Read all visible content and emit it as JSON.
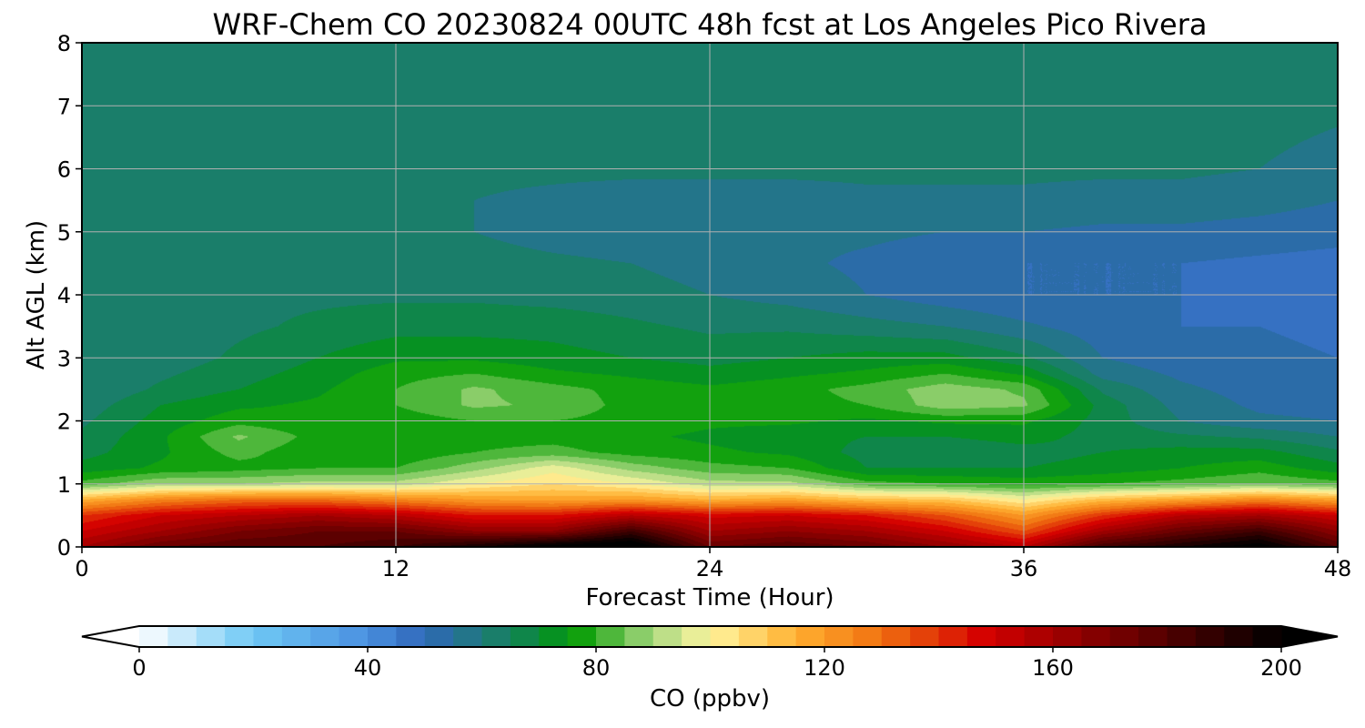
{
  "chart_data": {
    "type": "heatmap",
    "title": "WRF-Chem CO  20230824 00UTC 48h fcst at Los Angeles Pico Rivera",
    "xlabel": "Forecast Time (Hour)",
    "ylabel": "Alt AGL (km)",
    "xlim": [
      0,
      48
    ],
    "ylim": [
      0,
      8
    ],
    "xticks": [
      0,
      12,
      24,
      36,
      48
    ],
    "yticks": [
      0,
      1,
      2,
      3,
      4,
      5,
      6,
      7,
      8
    ],
    "grid": true,
    "colorbar": {
      "label": "CO  (ppbv)",
      "min": 0,
      "max": 200,
      "step": 5,
      "ticks": [
        0,
        40,
        80,
        120,
        160,
        200
      ],
      "extend": "both",
      "orientation": "horizontal"
    },
    "colorscale": [
      {
        "v": 0,
        "c": "#ffffff"
      },
      {
        "v": 20,
        "c": "#6ec8f5"
      },
      {
        "v": 40,
        "c": "#4a90e0"
      },
      {
        "v": 50,
        "c": "#2f67b8"
      },
      {
        "v": 60,
        "c": "#1f7a7a"
      },
      {
        "v": 70,
        "c": "#0a8a3a"
      },
      {
        "v": 76,
        "c": "#009a00"
      },
      {
        "v": 90,
        "c": "#a8d880"
      },
      {
        "v": 100,
        "c": "#fff5a0"
      },
      {
        "v": 115,
        "c": "#ffb030"
      },
      {
        "v": 130,
        "c": "#f07010"
      },
      {
        "v": 148,
        "c": "#d40000"
      },
      {
        "v": 170,
        "c": "#7a0000"
      },
      {
        "v": 200,
        "c": "#000000"
      }
    ],
    "x_hours": [
      0,
      3,
      6,
      9,
      12,
      15,
      18,
      21,
      24,
      27,
      30,
      33,
      36,
      39,
      42,
      45,
      48
    ],
    "alt_km": [
      0,
      0.25,
      0.5,
      0.75,
      1,
      1.25,
      1.5,
      1.75,
      2,
      2.25,
      2.5,
      2.75,
      3,
      3.5,
      4,
      4.5,
      5,
      5.5,
      6,
      7,
      8
    ],
    "co_ppbv": [
      [
        160,
        175,
        180,
        180,
        185,
        195,
        205,
        210,
        175,
        180,
        175,
        165,
        155,
        185,
        195,
        205,
        180
      ],
      [
        150,
        160,
        170,
        175,
        175,
        165,
        165,
        185,
        160,
        165,
        160,
        150,
        135,
        160,
        175,
        185,
        165
      ],
      [
        140,
        150,
        155,
        160,
        155,
        145,
        145,
        155,
        148,
        150,
        145,
        135,
        120,
        140,
        155,
        160,
        150
      ],
      [
        115,
        125,
        130,
        130,
        125,
        120,
        118,
        120,
        115,
        118,
        112,
        110,
        100,
        112,
        118,
        125,
        118
      ],
      [
        82,
        90,
        90,
        92,
        92,
        100,
        105,
        100,
        92,
        92,
        82,
        80,
        78,
        80,
        82,
        85,
        82
      ],
      [
        72,
        76,
        78,
        80,
        80,
        88,
        98,
        88,
        82,
        80,
        70,
        70,
        70,
        72,
        75,
        78,
        72
      ],
      [
        68,
        74,
        82,
        76,
        76,
        80,
        82,
        78,
        76,
        74,
        68,
        66,
        68,
        70,
        72,
        72,
        66
      ],
      [
        66,
        74,
        86,
        78,
        76,
        78,
        78,
        76,
        74,
        72,
        70,
        70,
        72,
        68,
        66,
        64,
        60
      ],
      [
        64,
        72,
        78,
        76,
        77,
        80,
        80,
        78,
        76,
        76,
        74,
        76,
        76,
        68,
        60,
        56,
        55
      ],
      [
        62,
        70,
        74,
        76,
        80,
        86,
        84,
        78,
        76,
        78,
        80,
        88,
        86,
        68,
        58,
        54,
        53
      ],
      [
        60,
        66,
        70,
        74,
        80,
        86,
        82,
        78,
        76,
        78,
        82,
        88,
        84,
        64,
        56,
        53,
        52
      ],
      [
        60,
        64,
        68,
        72,
        78,
        80,
        76,
        74,
        72,
        74,
        76,
        80,
        74,
        58,
        54,
        52,
        51
      ],
      [
        60,
        62,
        66,
        70,
        74,
        74,
        72,
        70,
        68,
        70,
        72,
        72,
        66,
        55,
        52,
        51,
        50
      ],
      [
        60,
        62,
        64,
        66,
        68,
        68,
        68,
        66,
        64,
        64,
        62,
        60,
        56,
        52,
        50,
        50,
        49
      ],
      [
        61,
        63,
        64,
        64,
        64,
        64,
        63,
        62,
        60,
        58,
        55,
        52,
        50,
        50,
        50,
        49,
        48
      ],
      [
        62,
        64,
        64,
        63,
        62,
        62,
        61,
        60,
        58,
        56,
        54,
        52,
        50,
        50,
        50,
        49,
        48
      ],
      [
        63,
        64,
        63,
        62,
        62,
        60,
        58,
        57,
        56,
        56,
        56,
        55,
        55,
        54,
        54,
        53,
        52
      ],
      [
        62,
        62,
        62,
        61,
        61,
        60,
        59,
        58,
        58,
        58,
        59,
        59,
        59,
        58,
        58,
        57,
        55
      ],
      [
        62,
        62,
        62,
        62,
        62,
        61,
        61,
        61,
        61,
        61,
        61,
        61,
        61,
        61,
        61,
        60,
        58
      ],
      [
        63,
        62,
        62,
        62,
        62,
        62,
        62,
        62,
        62,
        62,
        62,
        62,
        62,
        62,
        62,
        62,
        61
      ],
      [
        63,
        63,
        63,
        63,
        63,
        63,
        64,
        64,
        63,
        63,
        63,
        63,
        63,
        63,
        63,
        63,
        63
      ]
    ]
  }
}
